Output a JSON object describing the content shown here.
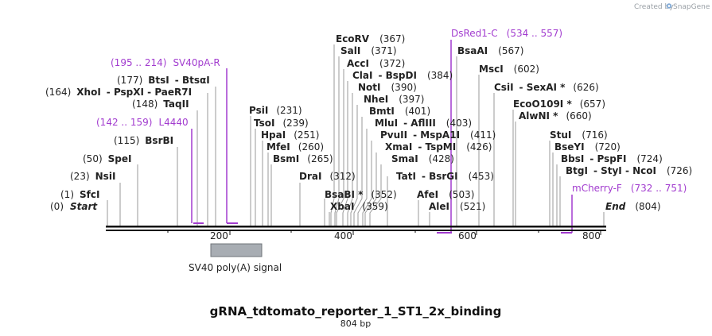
{
  "header": {
    "created_by": "Created by",
    "brand": "SnapGene"
  },
  "sequence": {
    "name": "gRNA_tdtomato_reporter_1_ST1_2x_binding",
    "length_label": "804 bp",
    "length": 804
  },
  "ruler": {
    "ticks": [
      "200",
      "400",
      "600",
      "800"
    ]
  },
  "ends": {
    "start": {
      "pos": "(0)",
      "name": "Start"
    },
    "end": {
      "name": "End",
      "pos": "(804)"
    }
  },
  "enzymes_left": [
    {
      "pos": "(1)",
      "name": "SfcI"
    },
    {
      "pos": "(23)",
      "name": "NsiI"
    },
    {
      "pos": "(50)",
      "name": "SpeI"
    },
    {
      "pos": "(115)",
      "name": "BsrBI"
    },
    {
      "pos": "(148)",
      "name": "TaqII"
    },
    {
      "pos": "(164)",
      "name": "XhoI",
      "extra": "- PspXI - PaeR7I"
    },
    {
      "pos": "(177)",
      "name": "BtsI",
      "extra": "- BtsαI"
    }
  ],
  "enzymes_mid": [
    {
      "name": "PsiI",
      "pos": "(231)"
    },
    {
      "name": "TsoI",
      "pos": "(239)"
    },
    {
      "name": "HpaI",
      "pos": "(251)"
    },
    {
      "name": "MfeI",
      "pos": "(260)"
    },
    {
      "name": "BsmI",
      "pos": "(265)"
    },
    {
      "name": "DraI",
      "pos": "(312)"
    },
    {
      "name": "BsaBI *",
      "pos": "(352)"
    },
    {
      "name": "XbaI",
      "pos": "(359)"
    },
    {
      "name": "EcoRV",
      "pos": "(367)"
    },
    {
      "name": "SalI",
      "pos": "(371)"
    },
    {
      "name": "AccI",
      "pos": "(372)"
    },
    {
      "name": "ClaI",
      "extra": "- BspDI",
      "pos": "(384)"
    },
    {
      "name": "NotI",
      "pos": "(390)"
    },
    {
      "name": "NheI",
      "pos": "(397)"
    },
    {
      "name": "BmtI",
      "pos": "(401)"
    },
    {
      "name": "MluI",
      "extra": "- AflIII",
      "pos": "(403)"
    },
    {
      "name": "PvuII",
      "extra": "- MspA1I",
      "pos": "(411)"
    },
    {
      "name": "XmaI",
      "extra": "- TspMI",
      "pos": "(426)"
    },
    {
      "name": "SmaI",
      "pos": "(428)"
    },
    {
      "name": "TatI",
      "extra": "- BsrGI",
      "pos": "(453)"
    },
    {
      "name": "AfeI",
      "pos": "(503)"
    },
    {
      "name": "AleI",
      "pos": "(521)"
    }
  ],
  "enzymes_right": [
    {
      "name": "BsaAI",
      "pos": "(567)"
    },
    {
      "name": "MscI",
      "pos": "(602)"
    },
    {
      "name": "CsiI",
      "extra": "- SexAI *",
      "pos": "(626)"
    },
    {
      "name": "EcoO109I *",
      "pos": "(657)"
    },
    {
      "name": "AlwNI *",
      "pos": "(660)"
    },
    {
      "name": "StuI",
      "pos": "(716)"
    },
    {
      "name": "BseYI",
      "pos": "(720)"
    },
    {
      "name": "BbsI",
      "extra": "- PspFI",
      "pos": "(724)"
    },
    {
      "name": "BtgI",
      "extra": "- StyI - NcoI",
      "pos": "(726)"
    }
  ],
  "primers": [
    {
      "name": "SV40pA-R",
      "range": "(195 .. 214)"
    },
    {
      "name": "L4440",
      "range": "(142 .. 159)"
    },
    {
      "name": "DsRed1-C",
      "range": "(534 .. 557)"
    },
    {
      "name": "mCherry-F",
      "range": "(732 .. 751)"
    }
  ],
  "features": [
    {
      "name": "SV40 poly(A) signal",
      "color": "#a8adb3"
    }
  ],
  "colors": {
    "primer": "#a23ccf",
    "backbone": "#111111",
    "feature_fill": "#a8adb3"
  }
}
